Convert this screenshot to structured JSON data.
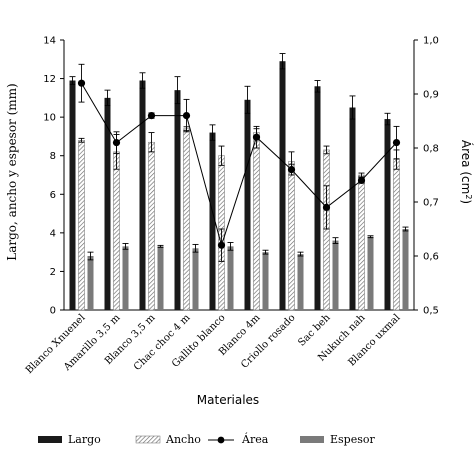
{
  "chart_data": {
    "type": "bar",
    "xlabel": "Materiales",
    "ylabel": "Largo, ancho y espesor (mm)",
    "y2label": "Área (cm²)",
    "ylim": [
      0,
      14
    ],
    "y2lim": [
      0.5,
      1.0
    ],
    "yticks": [
      "0",
      "2",
      "4",
      "6",
      "8",
      "10",
      "12",
      "14"
    ],
    "y2ticks": [
      "0,5",
      "0,6",
      "0,7",
      "0,8",
      "0,9",
      "1,0"
    ],
    "categories": [
      "Blanco Xnuenel",
      "Amarillo 3,5 m",
      "Blanco 3,5 m",
      "Chac choc 4 m",
      "Gallito blanco",
      "Blanco 4m",
      "Criollo rosado",
      "Sac beh",
      "Nukuch nah",
      "Blanco uxmal"
    ],
    "series": [
      {
        "name": "Largo",
        "kind": "bar",
        "color": "#1a1a1a",
        "values": [
          11.9,
          11.0,
          11.9,
          11.4,
          9.2,
          10.9,
          12.9,
          11.6,
          10.5,
          9.9
        ],
        "errors": [
          0.2,
          0.4,
          0.4,
          0.7,
          0.4,
          0.7,
          0.4,
          0.3,
          0.6,
          0.3
        ]
      },
      {
        "name": "Ancho",
        "kind": "bar",
        "color": "#d6d6d6",
        "values": [
          8.8,
          8.2,
          8.7,
          9.4,
          8.0,
          9.2,
          7.7,
          8.3,
          7.0,
          7.8
        ],
        "errors": [
          0.1,
          0.9,
          0.5,
          0.1,
          0.5,
          0.2,
          0.5,
          0.2,
          0.1,
          0.5
        ]
      },
      {
        "name": "Área",
        "kind": "line",
        "axis": "right",
        "color": "#000000",
        "values": [
          0.92,
          0.81,
          0.86,
          0.86,
          0.62,
          0.82,
          0.76,
          0.69,
          0.74,
          0.81
        ],
        "errors": [
          0.035,
          0.02,
          0.005,
          0.03,
          0.03,
          0.02,
          0.01,
          0.04,
          0.005,
          0.03
        ]
      },
      {
        "name": "Espesor",
        "kind": "bar",
        "color": "#7a7a7a",
        "values": [
          2.8,
          3.3,
          3.3,
          3.2,
          3.3,
          3.0,
          2.9,
          3.6,
          3.8,
          4.2
        ],
        "errors": [
          0.2,
          0.15,
          0.05,
          0.2,
          0.2,
          0.1,
          0.1,
          0.15,
          0.05,
          0.1
        ]
      }
    ],
    "legend": "bottom",
    "grid": false
  }
}
